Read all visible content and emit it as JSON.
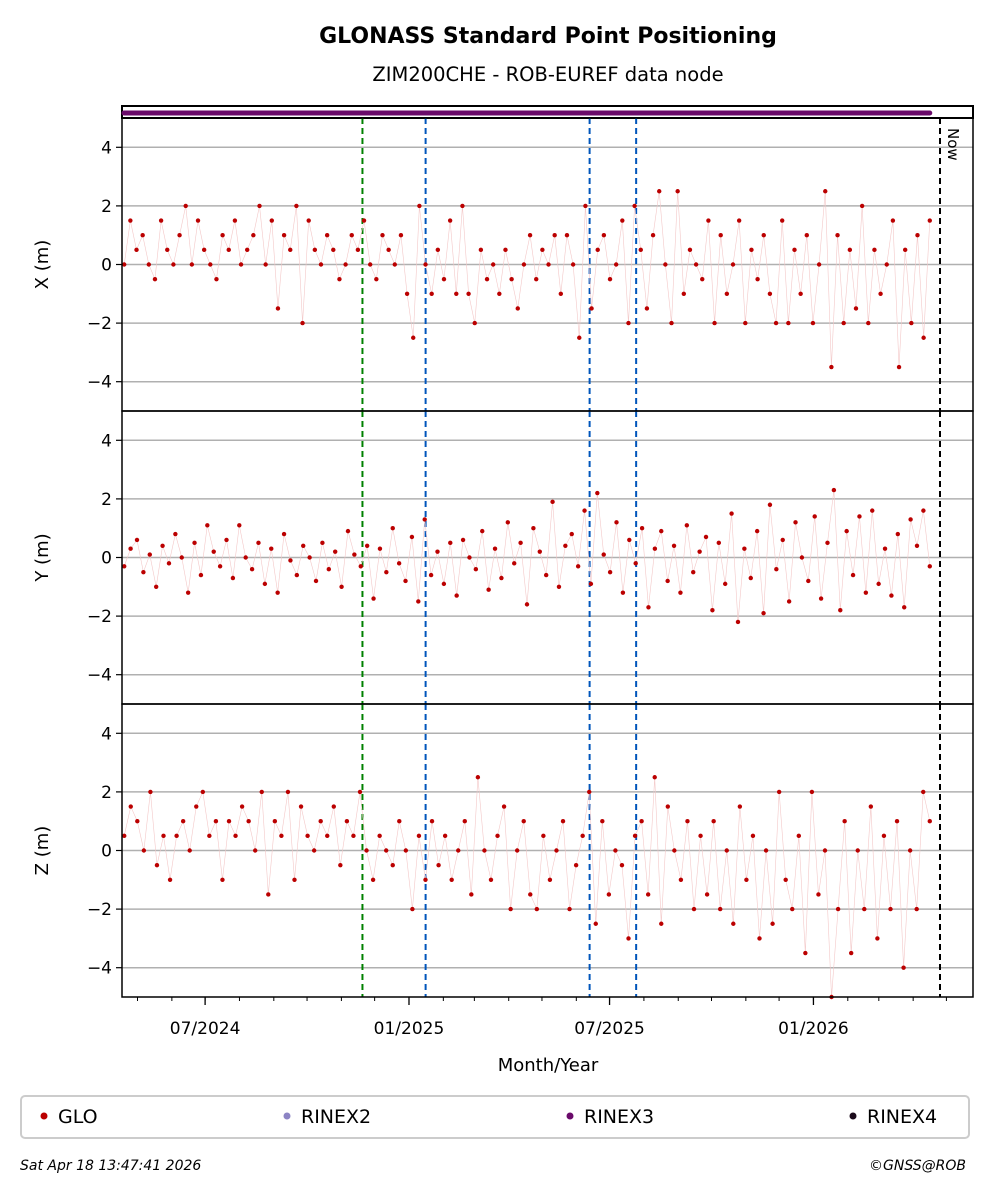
{
  "chart_data": {
    "type": "scatter",
    "title": "GLONASS Standard Point Positioning",
    "subtitle": "ZIM200CHE - ROB-EUREF data node",
    "xlabel": "Month/Year",
    "x_range": [
      "2024-04-17",
      "2026-05-25"
    ],
    "x_ticks": [
      {
        "date": "2024-07-01",
        "label": "07/2024"
      },
      {
        "date": "2025-01-01",
        "label": "01/2025"
      },
      {
        "date": "2025-07-01",
        "label": "07/2025"
      },
      {
        "date": "2026-01-01",
        "label": "01/2026"
      }
    ],
    "y_ticks": [
      -4,
      -2,
      0,
      2,
      4
    ],
    "ylim": [
      -5,
      5
    ],
    "grid": true,
    "now_label": "Now",
    "now_date": "2026-04-18",
    "event_lines": [
      {
        "date": "2024-11-20",
        "color": "#008000"
      },
      {
        "date": "2025-01-16",
        "color": "#0055bb"
      },
      {
        "date": "2025-06-13",
        "color": "#0055bb"
      },
      {
        "date": "2025-07-25",
        "color": "#0055bb"
      }
    ],
    "rinex3_bar": {
      "start": "2024-04-17",
      "end": "2026-04-16",
      "color": "#6a0a6a"
    },
    "series_start": "2024-04-19",
    "series_end": "2026-04-16",
    "panels": [
      {
        "ylabel": "X (m)",
        "name": "GLO",
        "color": "#bb0000",
        "values": [
          0,
          1.5,
          0.5,
          1,
          0,
          -0.5,
          1.5,
          0.5,
          0,
          1,
          2,
          0,
          1.5,
          0.5,
          0,
          -0.5,
          1,
          0.5,
          1.5,
          0,
          0.5,
          1,
          2,
          0,
          1.5,
          -1.5,
          1,
          0.5,
          2,
          -2,
          1.5,
          0.5,
          0,
          1,
          0.5,
          -0.5,
          0,
          1,
          0.5,
          1.5,
          0,
          -0.5,
          1,
          0.5,
          0,
          1,
          -1,
          -2.5,
          2,
          0,
          -1,
          0.5,
          -0.5,
          1.5,
          -1,
          2,
          -1,
          -2,
          0.5,
          -0.5,
          0,
          -1,
          0.5,
          -0.5,
          -1.5,
          0,
          1,
          -0.5,
          0.5,
          0,
          1,
          -1,
          1,
          0,
          -2.5,
          2,
          -1.5,
          0.5,
          1,
          -0.5,
          0,
          1.5,
          -2,
          2,
          0.5,
          -1.5,
          1,
          2.5,
          0,
          -2,
          2.5,
          -1,
          0.5,
          0,
          -0.5,
          1.5,
          -2,
          1,
          -1,
          0,
          1.5,
          -2,
          0.5,
          -0.5,
          1,
          -1,
          -2,
          1.5,
          -2,
          0.5,
          -1,
          1,
          -2,
          0,
          2.5,
          -3.5,
          1,
          -2,
          0.5,
          -1.5,
          2,
          -2,
          0.5,
          -1,
          0,
          1.5,
          -3.5,
          0.5,
          -2,
          1,
          -2.5,
          1.5
        ]
      },
      {
        "ylabel": "Y (m)",
        "name": "GLO",
        "color": "#bb0000",
        "values": [
          -0.3,
          0.3,
          0.6,
          -0.5,
          0.1,
          -1.0,
          0.4,
          -0.2,
          0.8,
          0.0,
          -1.2,
          0.5,
          -0.6,
          1.1,
          0.2,
          -0.3,
          0.6,
          -0.7,
          1.1,
          0.0,
          -0.4,
          0.5,
          -0.9,
          0.3,
          -1.2,
          0.8,
          -0.1,
          -0.6,
          0.4,
          0.0,
          -0.8,
          0.5,
          -0.4,
          0.2,
          -1.0,
          0.9,
          0.1,
          -0.3,
          0.4,
          -1.4,
          0.3,
          -0.5,
          1.0,
          -0.2,
          -0.8,
          0.7,
          -1.5,
          1.3,
          -0.6,
          0.2,
          -0.9,
          0.5,
          -1.3,
          0.6,
          0.0,
          -0.4,
          0.9,
          -1.1,
          0.3,
          -0.7,
          1.2,
          -0.2,
          0.5,
          -1.6,
          1.0,
          0.2,
          -0.6,
          1.9,
          -1.0,
          0.4,
          0.8,
          -0.3,
          1.6,
          -0.9,
          2.2,
          0.1,
          -0.5,
          1.2,
          -1.2,
          0.6,
          -0.2,
          1.0,
          -1.7,
          0.3,
          0.9,
          -0.8,
          0.4,
          -1.2,
          1.1,
          -0.5,
          0.2,
          0.7,
          -1.8,
          0.5,
          -0.9,
          1.5,
          -2.2,
          0.3,
          -0.7,
          0.9,
          -1.9,
          1.8,
          -0.4,
          0.6,
          -1.5,
          1.2,
          0.0,
          -0.8,
          1.4,
          -1.4,
          0.5,
          2.3,
          -1.8,
          0.9,
          -0.6,
          1.4,
          -1.2,
          1.6,
          -0.9,
          0.3,
          -1.3,
          0.8,
          -1.7,
          1.3,
          0.4,
          1.6,
          -0.3
        ]
      },
      {
        "ylabel": "Z (m)",
        "name": "GLO",
        "color": "#bb0000",
        "values": [
          0.5,
          1.5,
          1,
          0,
          2,
          -0.5,
          0.5,
          -1,
          0.5,
          1,
          0,
          1.5,
          2,
          0.5,
          1,
          -1,
          1,
          0.5,
          1.5,
          1,
          0,
          2,
          -1.5,
          1,
          0.5,
          2,
          -1,
          1.5,
          0.5,
          0,
          1,
          0.5,
          1.5,
          -0.5,
          1,
          0.5,
          2,
          0,
          -1,
          0.5,
          0,
          -0.5,
          1,
          0,
          -2,
          0.5,
          -1,
          1,
          -0.5,
          0.5,
          -1,
          0,
          1,
          -1.5,
          2.5,
          0,
          -1,
          0.5,
          1.5,
          -2,
          0,
          1,
          -1.5,
          -2,
          0.5,
          -1,
          0,
          1,
          -2,
          -0.5,
          0.5,
          2,
          -2.5,
          1,
          -1.5,
          0,
          -0.5,
          -3,
          0.5,
          1,
          -1.5,
          2.5,
          -2.5,
          1.5,
          0,
          -1,
          1,
          -2,
          0.5,
          -1.5,
          1,
          -2,
          0,
          -2.5,
          1.5,
          -1,
          0.5,
          -3,
          0,
          -2.5,
          2,
          -1,
          -2,
          0.5,
          -3.5,
          2,
          -1.5,
          0,
          -5,
          -2,
          1,
          -3.5,
          0,
          -2,
          1.5,
          -3,
          0.5,
          -2,
          1,
          -4,
          0,
          -2,
          2,
          1
        ]
      }
    ],
    "legend": [
      {
        "label": "GLO",
        "color": "#bb0000"
      },
      {
        "label": "RINEX2",
        "color": "#8c84c4"
      },
      {
        "label": "RINEX3",
        "color": "#6a0a6a"
      },
      {
        "label": "RINEX4",
        "color": "#1a0a1a"
      }
    ],
    "legend_position": "bottom"
  },
  "footer": {
    "timestamp": "Sat Apr 18 13:47:41 2026",
    "credit": "©GNSS@ROB"
  }
}
